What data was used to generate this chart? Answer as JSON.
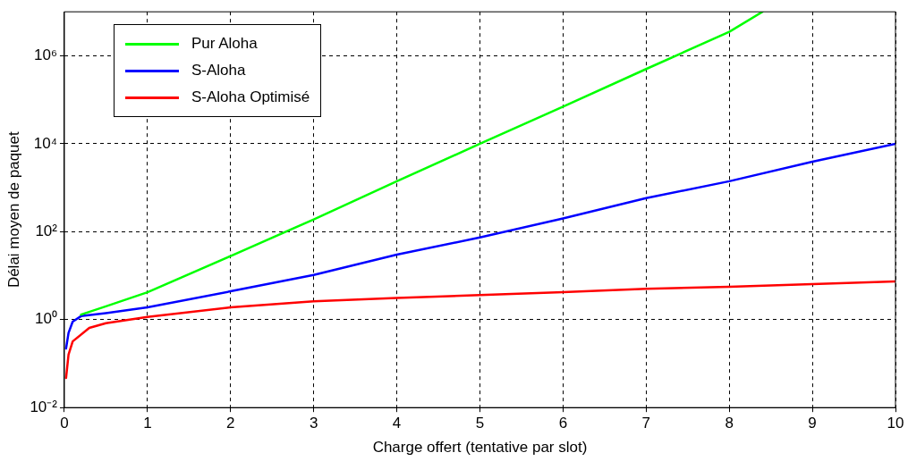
{
  "chart_data": {
    "type": "line",
    "xlabel": "Charge offert (tentative par slot)",
    "ylabel": "Délai moyen de paquet",
    "log": "y",
    "grid": true,
    "legend": "top left",
    "marker": "none",
    "line_style": "solid",
    "xlim": [
      0,
      10
    ],
    "xticks": [
      0,
      1,
      2,
      3,
      4,
      5,
      6,
      7,
      8,
      9,
      10
    ],
    "ylim": [
      0.01,
      10000000
    ],
    "yticks": [
      {
        "value": 0.01,
        "label": "10⁻²"
      },
      {
        "value": 1,
        "label": "10⁰"
      },
      {
        "value": 100,
        "label": "10²"
      },
      {
        "value": 10000,
        "label": "10⁴"
      },
      {
        "value": 1000000,
        "label": "10⁶"
      }
    ],
    "series": [
      {
        "name": "Pur Aloha",
        "color": "#00ff00",
        "x": [
          0.2,
          0.5,
          1,
          2,
          3,
          4,
          5,
          6,
          7,
          8,
          8.4
        ],
        "values": [
          1.3,
          2,
          4.2,
          28,
          190,
          1400,
          10000,
          70000,
          500000,
          3500000,
          10000000
        ]
      },
      {
        "name": "S-Aloha",
        "color": "#0000ff",
        "x": [
          0.02,
          0.05,
          0.1,
          0.2,
          0.5,
          1,
          2,
          3,
          4,
          5,
          6,
          7,
          8,
          9,
          10
        ],
        "values": [
          0.22,
          0.5,
          0.9,
          1.2,
          1.4,
          1.9,
          4.4,
          10.4,
          30,
          74,
          200,
          580,
          1400,
          3900,
          10000
        ]
      },
      {
        "name": "S-Aloha Optimisé",
        "color": "#ff0000",
        "x": [
          0.02,
          0.05,
          0.1,
          0.3,
          0.5,
          1,
          2,
          3,
          4,
          5,
          6,
          7,
          8,
          9,
          10
        ],
        "values": [
          0.047,
          0.16,
          0.32,
          0.65,
          0.83,
          1.15,
          1.9,
          2.6,
          3.1,
          3.6,
          4.2,
          5,
          5.6,
          6.4,
          7.4
        ]
      }
    ]
  }
}
